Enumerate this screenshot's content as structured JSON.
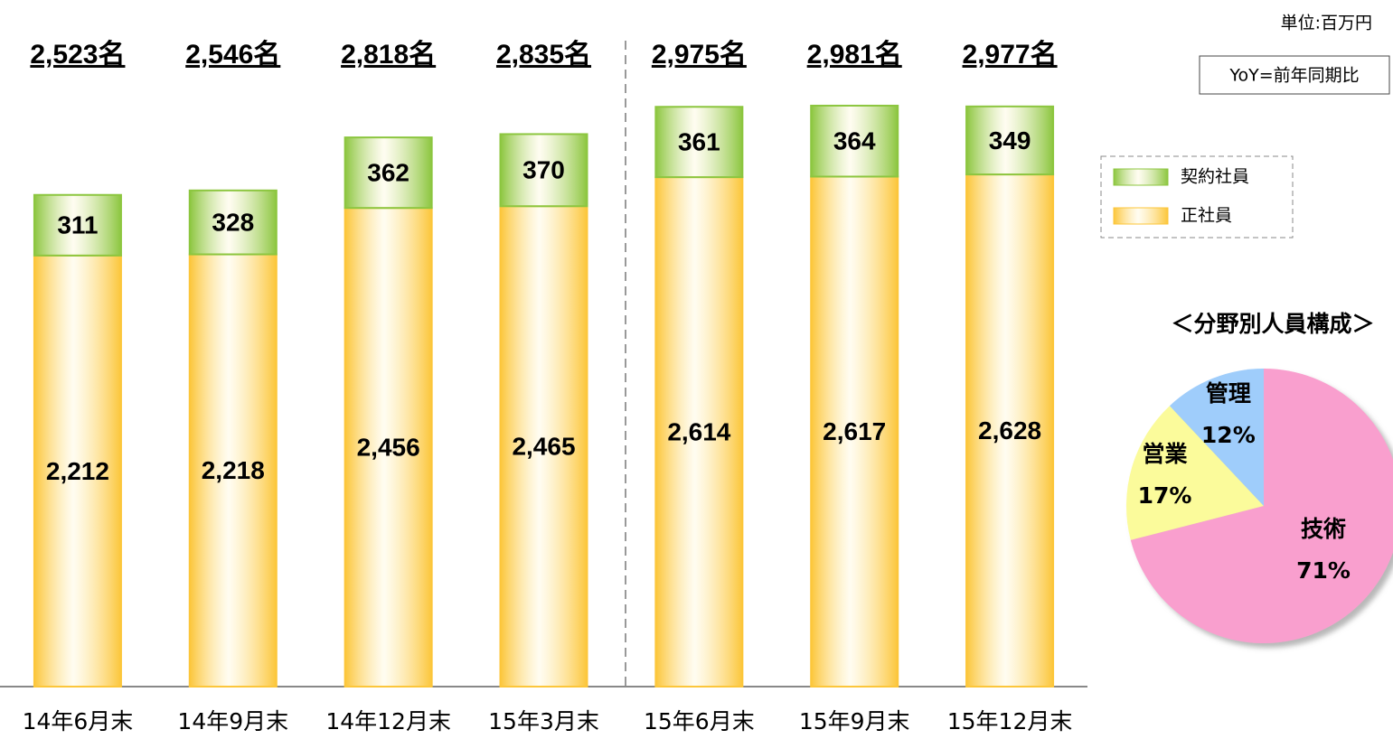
{
  "chart_data": [
    {
      "type": "stacked_bar",
      "unit": "単位:百万円",
      "note": "YoY=前年同期比",
      "categories": [
        "14年6月末",
        "14年9月末",
        "14年12月末",
        "15年3月末",
        "15年6月末",
        "15年9月末",
        "15年12月末"
      ],
      "total_labels": [
        "2,523名",
        "2,546名",
        "2,818名",
        "2,835名",
        "2,975名",
        "2,981名",
        "2,977名"
      ],
      "series": [
        {
          "name": "正社員",
          "color": "#fcc63a",
          "values": [
            2212,
            2218,
            2456,
            2465,
            2614,
            2617,
            2628
          ],
          "value_labels": [
            "2,212",
            "2,218",
            "2,456",
            "2,465",
            "2,614",
            "2,617",
            "2,628"
          ]
        },
        {
          "name": "契約社員",
          "color": "#8cc63f",
          "values": [
            311,
            328,
            362,
            370,
            361,
            364,
            349
          ]
        }
      ],
      "ylim": [
        0,
        3500
      ]
    },
    {
      "type": "pie",
      "title": "＜分野別人員構成＞",
      "categories": [
        "技術",
        "営業",
        "管理"
      ],
      "values": [
        71,
        17,
        12
      ],
      "value_labels": [
        "71%",
        "17%",
        "12%"
      ],
      "colors": [
        "#f99fce",
        "#fbfb9b",
        "#9fcdfb"
      ]
    }
  ]
}
